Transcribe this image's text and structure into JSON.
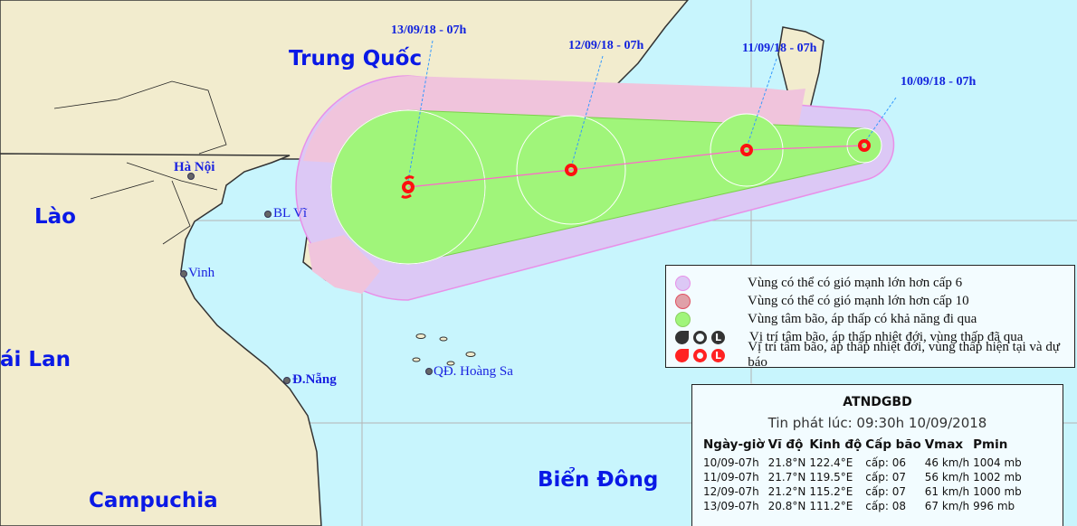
{
  "colors": {
    "sea": "#c8f5fd",
    "land": "#f2ecce",
    "zone_level6": "#dcc8f5",
    "zone_level10": "#f0c4dc",
    "track_cone": "#a0f57a",
    "storm_past": "#333333",
    "storm_forecast": "#ff1a1a",
    "label": "#0a19e6"
  },
  "map": {
    "countries": [
      "Trung Quốc",
      "Lào",
      "ái Lan",
      "Campuchia",
      "Biển Đông"
    ],
    "cities": [
      "Hà Nội",
      "BL Vĩ",
      "Vinh",
      "Đ.Nẵng",
      "QĐ. Hoàng Sa"
    ],
    "track": [
      {
        "label": "10/09/18 - 07h",
        "lon": 122.4,
        "lat": 21.8
      },
      {
        "label": "11/09/18 - 07h",
        "lon": 119.5,
        "lat": 21.7
      },
      {
        "label": "12/09/18 - 07h",
        "lon": 115.2,
        "lat": 21.2
      },
      {
        "label": "13/09/18 - 07h",
        "lon": 111.2,
        "lat": 20.8
      }
    ]
  },
  "legend": {
    "items": [
      {
        "icon": "purple-circle-icon",
        "text": "Vùng có thể có gió mạnh lớn hơn cấp 6"
      },
      {
        "icon": "red-circle-icon",
        "text": "Vùng có thể có gió mạnh lớn hơn cấp 10"
      },
      {
        "icon": "green-circle-icon",
        "text": "Vùng tâm bão, áp thấp có khả năng đi qua"
      },
      {
        "icon": "black-storm-icons",
        "text": "Vị trí tâm bão, áp thấp nhiệt đới, vùng thấp đã qua"
      },
      {
        "icon": "red-storm-icons",
        "text": "Vị trí tâm bão, áp thấp nhiệt đới, vùng thấp hiện tại và dự báo"
      }
    ]
  },
  "info": {
    "title": "ATNDGBD",
    "issued": "Tin phát lúc: 09:30h 10/09/2018",
    "headers": [
      "Ngày-giờ",
      "Vĩ độ",
      "Kinh độ",
      "Cấp bão",
      "Vmax",
      "Pmin"
    ],
    "rows": [
      [
        "10/09-07h",
        "21.8°N",
        "122.4°E",
        "cấp: 06",
        "46 km/h",
        "1004 mb"
      ],
      [
        "11/09-07h",
        "21.7°N",
        "119.5°E",
        "cấp: 07",
        "56 km/h",
        "1002 mb"
      ],
      [
        "12/09-07h",
        "21.2°N",
        "115.2°E",
        "cấp: 07",
        "61 km/h",
        "1000 mb"
      ],
      [
        "13/09-07h",
        "20.8°N",
        "111.2°E",
        "cấp: 08",
        "67 km/h",
        "996 mb"
      ]
    ]
  }
}
